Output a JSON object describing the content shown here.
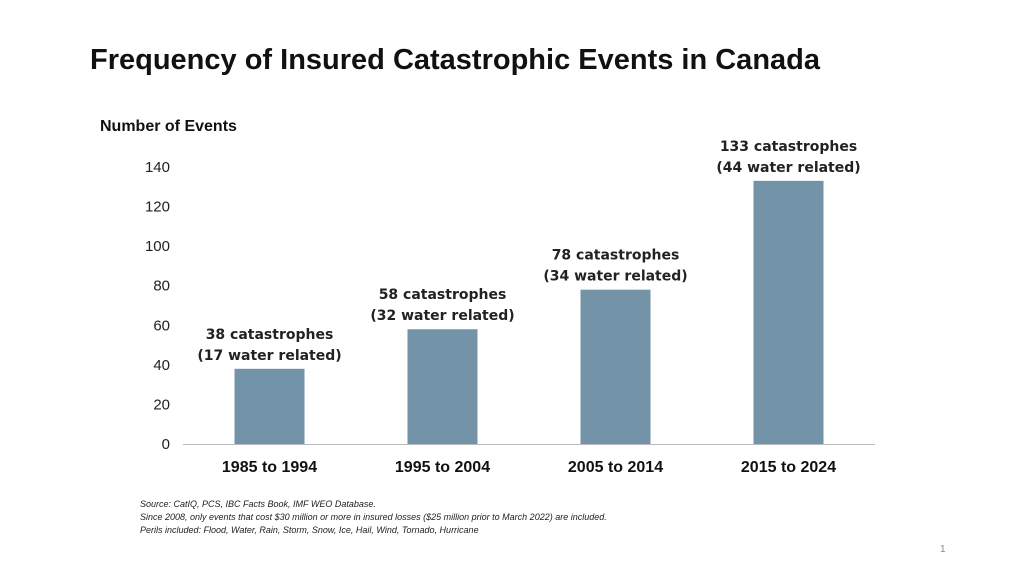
{
  "chart_data": {
    "type": "bar",
    "title": "Frequency of Insured Catastrophic Events in Canada",
    "ylabel": "Number of Events",
    "xlabel": "",
    "categories": [
      "1985 to 1994",
      "1995 to 2004",
      "2005 to 2014",
      "2015 to 2024"
    ],
    "values": [
      38,
      58,
      78,
      133
    ],
    "data_labels": [
      [
        "38 catastrophes",
        "(17 water related)"
      ],
      [
        "58 catastrophes",
        "(32 water related)"
      ],
      [
        "78 catastrophes",
        "(34 water related)"
      ],
      [
        "133 catastrophes",
        "(44 water related)"
      ]
    ],
    "ylim": [
      0,
      140
    ],
    "yticks": [
      0,
      20,
      40,
      60,
      80,
      100,
      120,
      140
    ],
    "grid": false,
    "legend": "none",
    "bar_color": "#7393a8"
  },
  "footnotes": [
    "Source: CatIQ, PCS, IBC Facts Book, IMF WEO Database.",
    "Since 2008, only events that cost $30 million or more in insured losses ($25 million prior to March 2022) are included.",
    "Perils included: Flood, Water, Rain, Storm, Snow, Ice, Hail, Wind, Tornado, Hurricane"
  ],
  "page_number": "1"
}
